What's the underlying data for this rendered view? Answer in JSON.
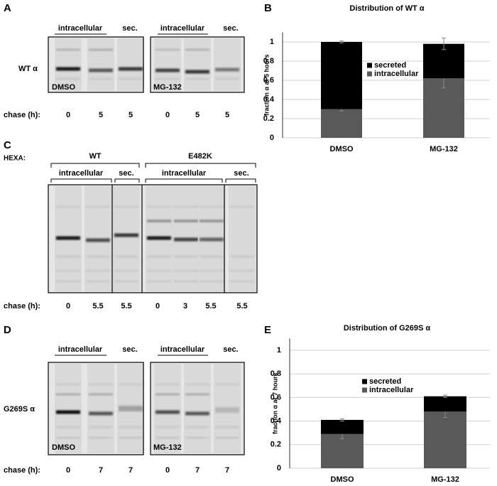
{
  "panel_labels": [
    "A",
    "B",
    "C",
    "D",
    "E"
  ],
  "panel_a": {
    "headers": [
      "intracellular",
      "sec.",
      "intracellular",
      "sec."
    ],
    "row_label": "WT α",
    "treatments": [
      "DMSO",
      "MG-132"
    ],
    "chase_label": "chase (h):",
    "lanes": [
      "0",
      "5",
      "5",
      "0",
      "5",
      "5"
    ]
  },
  "panel_c": {
    "gene_label": "HEXA:",
    "groups": [
      "WT",
      "E482K"
    ],
    "headers": [
      "intracellular",
      "sec.",
      "intracellular",
      "sec."
    ],
    "chase_label": "chase (h):",
    "lanes": [
      "0",
      "5.5",
      "5.5",
      "0",
      "3",
      "5.5",
      "5.5"
    ]
  },
  "panel_d": {
    "headers": [
      "intracellular",
      "sec.",
      "intracellular",
      "sec."
    ],
    "row_label": "G269S α",
    "treatments": [
      "DMSO",
      "MG-132"
    ],
    "chase_label": "chase (h):",
    "lanes": [
      "0",
      "7",
      "7",
      "0",
      "7",
      "7"
    ]
  },
  "chart_data": [
    {
      "type": "bar",
      "stacked": true,
      "title": "Distribution of WT α",
      "y_label": "fraction α at 5 hours",
      "categories": [
        "DMSO",
        "MG-132"
      ],
      "series": [
        {
          "name": "intracellular",
          "color": "#595959",
          "values": [
            0.3,
            0.62
          ],
          "errors": [
            0.02,
            0.1
          ]
        },
        {
          "name": "secreted",
          "color": "#000000",
          "values": [
            0.7,
            0.36
          ],
          "errors": [
            0.01,
            0.06
          ]
        }
      ],
      "ylim": [
        0,
        1.1
      ],
      "yticks": [
        0,
        0.2,
        0.4,
        0.6,
        0.8,
        1
      ],
      "grid": true
    },
    {
      "type": "bar",
      "stacked": true,
      "title": "Distribution of G269S α",
      "y_label": "fraction α at 7 hours",
      "categories": [
        "DMSO",
        "MG-132"
      ],
      "series": [
        {
          "name": "intracellular",
          "color": "#595959",
          "values": [
            0.29,
            0.48
          ],
          "errors": [
            0.04,
            0.05
          ]
        },
        {
          "name": "secreted",
          "color": "#000000",
          "values": [
            0.12,
            0.13
          ],
          "errors": [
            0.01,
            0.01
          ]
        }
      ],
      "ylim": [
        0,
        1.1
      ],
      "yticks": [
        0,
        0.2,
        0.4,
        0.6,
        0.8,
        1
      ],
      "grid": true
    }
  ]
}
